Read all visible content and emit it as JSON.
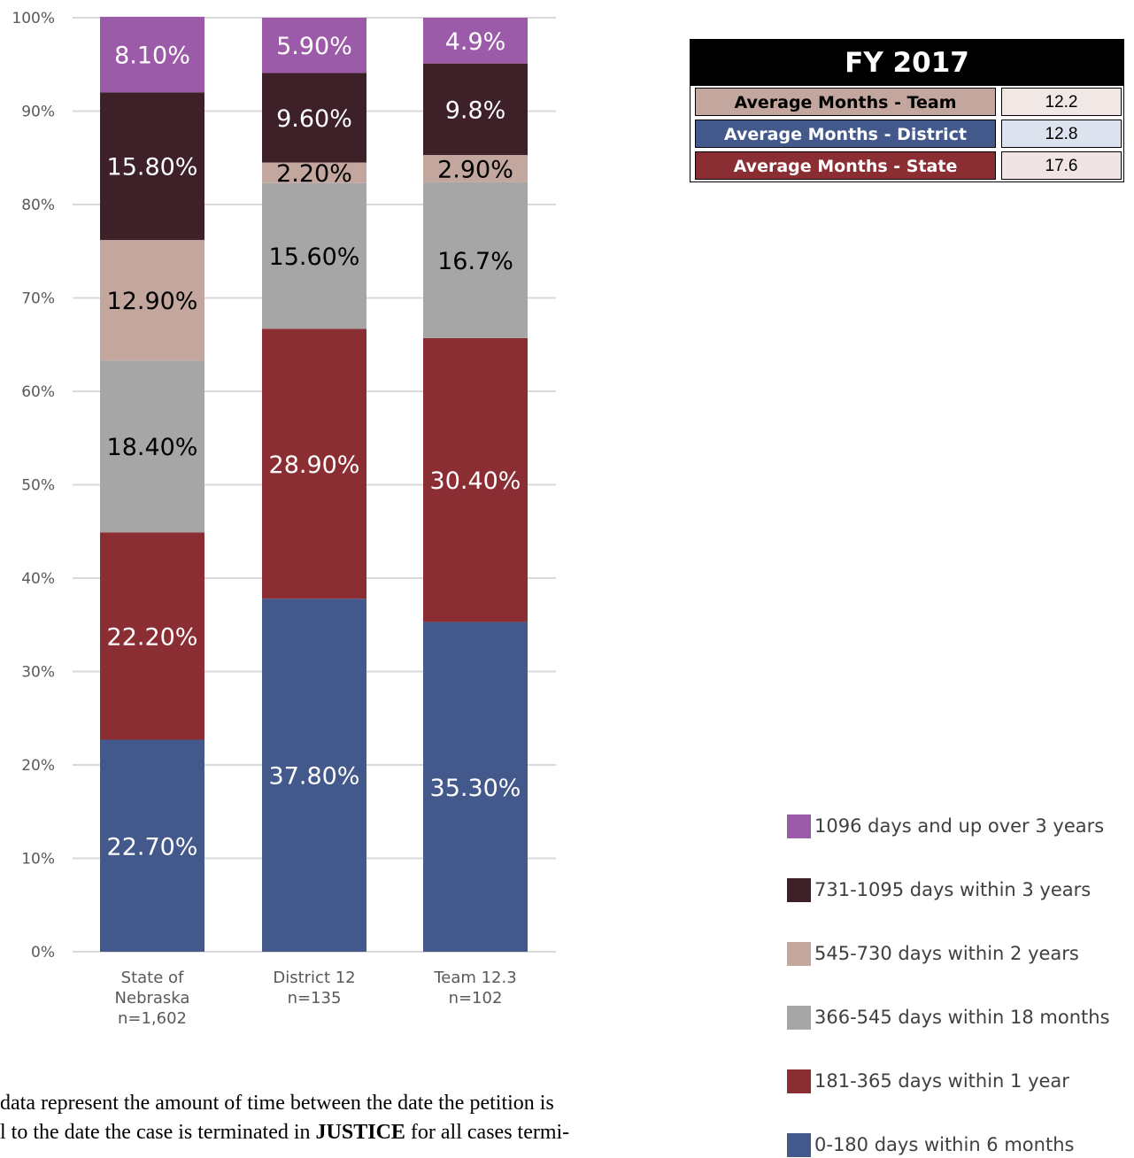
{
  "chart_data": {
    "type": "bar",
    "stacked": true,
    "percent_stacked": true,
    "categories": [
      [
        "State of",
        "Nebraska",
        "n=1,602"
      ],
      [
        "District 12",
        "n=135"
      ],
      [
        "Team 12.3",
        "n=102"
      ]
    ],
    "yticks": [
      "0%",
      "10%",
      "20%",
      "30%",
      "40%",
      "50%",
      "60%",
      "70%",
      "80%",
      "90%",
      "100%"
    ],
    "ylim": [
      0,
      100
    ],
    "grid": true,
    "legend_position": "bottom-right",
    "series": [
      {
        "name": "0-180 days within 6 months",
        "color": "#43598c",
        "values": [
          22.7,
          37.8,
          35.3
        ],
        "labels": [
          "22.70%",
          "37.80%",
          "35.30%"
        ],
        "label_color": "#ffffff"
      },
      {
        "name": "181-365 days within 1 year",
        "color": "#8b2e33",
        "values": [
          22.2,
          28.9,
          30.4
        ],
        "labels": [
          "22.20%",
          "28.90%",
          "30.40%"
        ],
        "label_color": "#ffffff"
      },
      {
        "name": "366-545 days within 18 months",
        "color": "#a6a6a6",
        "values": [
          18.4,
          15.6,
          16.7
        ],
        "labels": [
          "18.40%",
          "15.60%",
          "16.7%"
        ],
        "label_color": "#000000"
      },
      {
        "name": "545-730 days within 2 years",
        "color": "#c3a79f",
        "values": [
          12.9,
          2.2,
          2.9
        ],
        "labels": [
          "12.90%",
          "2.20%",
          "2.90%"
        ],
        "label_color": "#000000"
      },
      {
        "name": "731-1095 days within 3 years",
        "color": "#3d2028",
        "values": [
          15.8,
          9.6,
          9.8
        ],
        "labels": [
          "15.80%",
          "9.60%",
          "9.8%"
        ],
        "label_color": "#ffffff"
      },
      {
        "name": "1096 days and up over 3 years",
        "color": "#9c5ba8",
        "values": [
          8.1,
          5.9,
          4.9
        ],
        "labels": [
          "8.10%",
          "5.90%",
          "4.9%"
        ],
        "label_color": "#ffffff"
      }
    ]
  },
  "summary_table": {
    "title": "FY 2017",
    "rows": [
      {
        "label": "Average Months - Team",
        "value": "12.2",
        "color": "#c3a79f",
        "value_bg": "#f1e8e6"
      },
      {
        "label": "Average Months - District",
        "value": "12.8",
        "color": "#43598c",
        "value_bg": "#dde3ee"
      },
      {
        "label": "Average Months - State",
        "value": "17.6",
        "color": "#8b2e33",
        "value_bg": "#f1e4e4"
      }
    ]
  },
  "note": {
    "line1": " data represent the amount of time between the date the petition is",
    "line2_a": "l to the date the case is terminated in ",
    "line2_bold": "JUSTICE",
    "line2_b": " for all cases termi-"
  }
}
